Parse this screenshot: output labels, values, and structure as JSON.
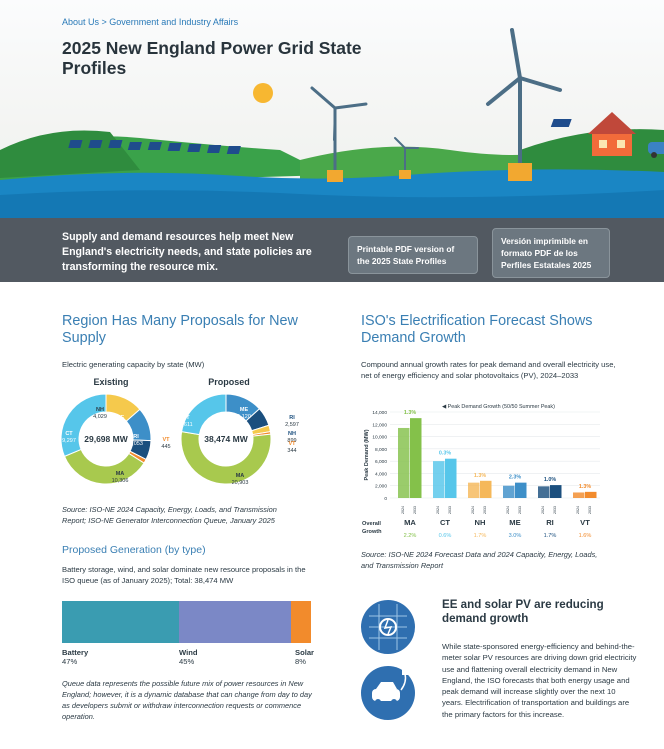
{
  "header": {
    "breadcrumb": "About Us > Government and Industry Affairs",
    "title": "2025 New England Power Grid State Profiles"
  },
  "banner": {
    "text": "Supply and demand resources help meet New England's electricity needs, and state policies are transforming the resource mix.",
    "pdf_en": "Printable PDF version of the 2025 State Profiles",
    "pdf_es": "Versión imprimible en formato PDF de los Perfiles Estatales 2025"
  },
  "region": {
    "title": "Region Has Many Proposals for New Supply",
    "caption": "Electric generating capacity by state (MW)",
    "source": "Source: ISO-NE 2024 Capacity, Energy, Loads, and Transmission Report; ISO-NE Generator Interconnection Queue, January 2025"
  },
  "chart_data": [
    {
      "type": "pie",
      "title": "Existing",
      "center_label": "29,698 MW",
      "categories": [
        "NH",
        "ME",
        "RI",
        "VT",
        "MA",
        "CT"
      ],
      "values": [
        4029,
        3568,
        2053,
        445,
        10306,
        9297
      ],
      "labels": [
        "4,029",
        "3,568",
        "2,053",
        "445",
        "10,306",
        "9,297"
      ],
      "colors": [
        "#f5c94c",
        "#3d8fc8",
        "#1b4f7e",
        "#f28b2c",
        "#a8c94e",
        "#56c6ea"
      ]
    },
    {
      "type": "pie",
      "title": "Proposed",
      "center_label": "38,474 MW",
      "categories": [
        "ME",
        "RI",
        "NH",
        "VT",
        "MA",
        "CT"
      ],
      "values": [
        5120,
        2597,
        899,
        344,
        20903,
        8611
      ],
      "labels": [
        "5,120",
        "2,597",
        "899",
        "344",
        "20,903",
        "8,611"
      ],
      "colors": [
        "#3d8fc8",
        "#1b4f7e",
        "#f5c94c",
        "#f28b2c",
        "#a8c94e",
        "#56c6ea"
      ]
    },
    {
      "type": "bar",
      "title": "Peak Demand Growth (50/50 Summer Peak)",
      "ylabel": "Peak Demand (MW)",
      "ylim": [
        0,
        14000
      ],
      "yticks": [
        "14,000",
        "12,000",
        "10,000",
        "8,000",
        "6,000",
        "4,000",
        "2,000",
        "0"
      ],
      "categories": [
        "MA",
        "CT",
        "NH",
        "ME",
        "RI",
        "VT"
      ],
      "x_years": [
        "2024",
        "2033"
      ],
      "series": [
        {
          "name": "2024",
          "values": [
            11400,
            6000,
            2500,
            2000,
            1900,
            900
          ]
        },
        {
          "name": "2033",
          "values": [
            13000,
            6400,
            2800,
            2500,
            2100,
            1000
          ]
        }
      ],
      "top_labels": [
        "1.3%",
        "0.3%",
        "1.3%",
        "2.3%",
        "1.0%",
        "1.3%"
      ],
      "overall_label": "Overall Growth",
      "overall_growth": [
        "2.2%",
        "0.6%",
        "1.7%",
        "3.0%",
        "1.7%",
        "1.6%"
      ],
      "colors": [
        "#84c14a",
        "#56c6ea",
        "#f5b85a",
        "#3d8fc8",
        "#1b4f7e",
        "#f28b2c"
      ]
    },
    {
      "type": "bar",
      "title": "Proposed Generation (by type)",
      "categories": [
        "Battery",
        "Wind",
        "Solar"
      ],
      "values": [
        47,
        45,
        8
      ],
      "labels": [
        "47%",
        "45%",
        "8%"
      ],
      "colors": [
        "#3a9cb1",
        "#7b88c6",
        "#f28b2c"
      ]
    }
  ],
  "electrification": {
    "title": "ISO's Electrification Forecast Shows Demand Growth",
    "caption": "Compound annual growth rates for peak demand and overall electricity use, net of energy efficiency and solar photovoltaics (PV), 2024–2033",
    "source": "Source: ISO-NE 2024 Forecast Data and 2024 Capacity, Energy, Loads, and Transmission Report"
  },
  "proposed_gen": {
    "title": "Proposed Generation (by type)",
    "text": "Battery storage, wind, and solar dominate new resource proposals in the ISO queue (as of January 2025); Total: 38,474 MW",
    "note": "Queue data represents the possible future mix of power resources in New England; however, it is a dynamic database that can change from day to day as developers submit or withdraw interconnection requests or commence operation."
  },
  "ee": {
    "title": "EE and solar PV are reducing demand growth",
    "text": "While state-sponsored energy-efficiency and behind-the-meter solar PV resources are driving down grid electricity use and flattening overall electricity demand in New England, the ISO forecasts that both energy usage and peak demand will increase slightly over the next 10 years. Electrification of transportation and buildings are the primary factors for this increase."
  },
  "icons": [
    "sun-icon",
    "wind-turbine-icon",
    "solar-panel-icon",
    "house-icon",
    "electric-car-icon",
    "lightbulb-icon",
    "ev-plug-icon"
  ]
}
